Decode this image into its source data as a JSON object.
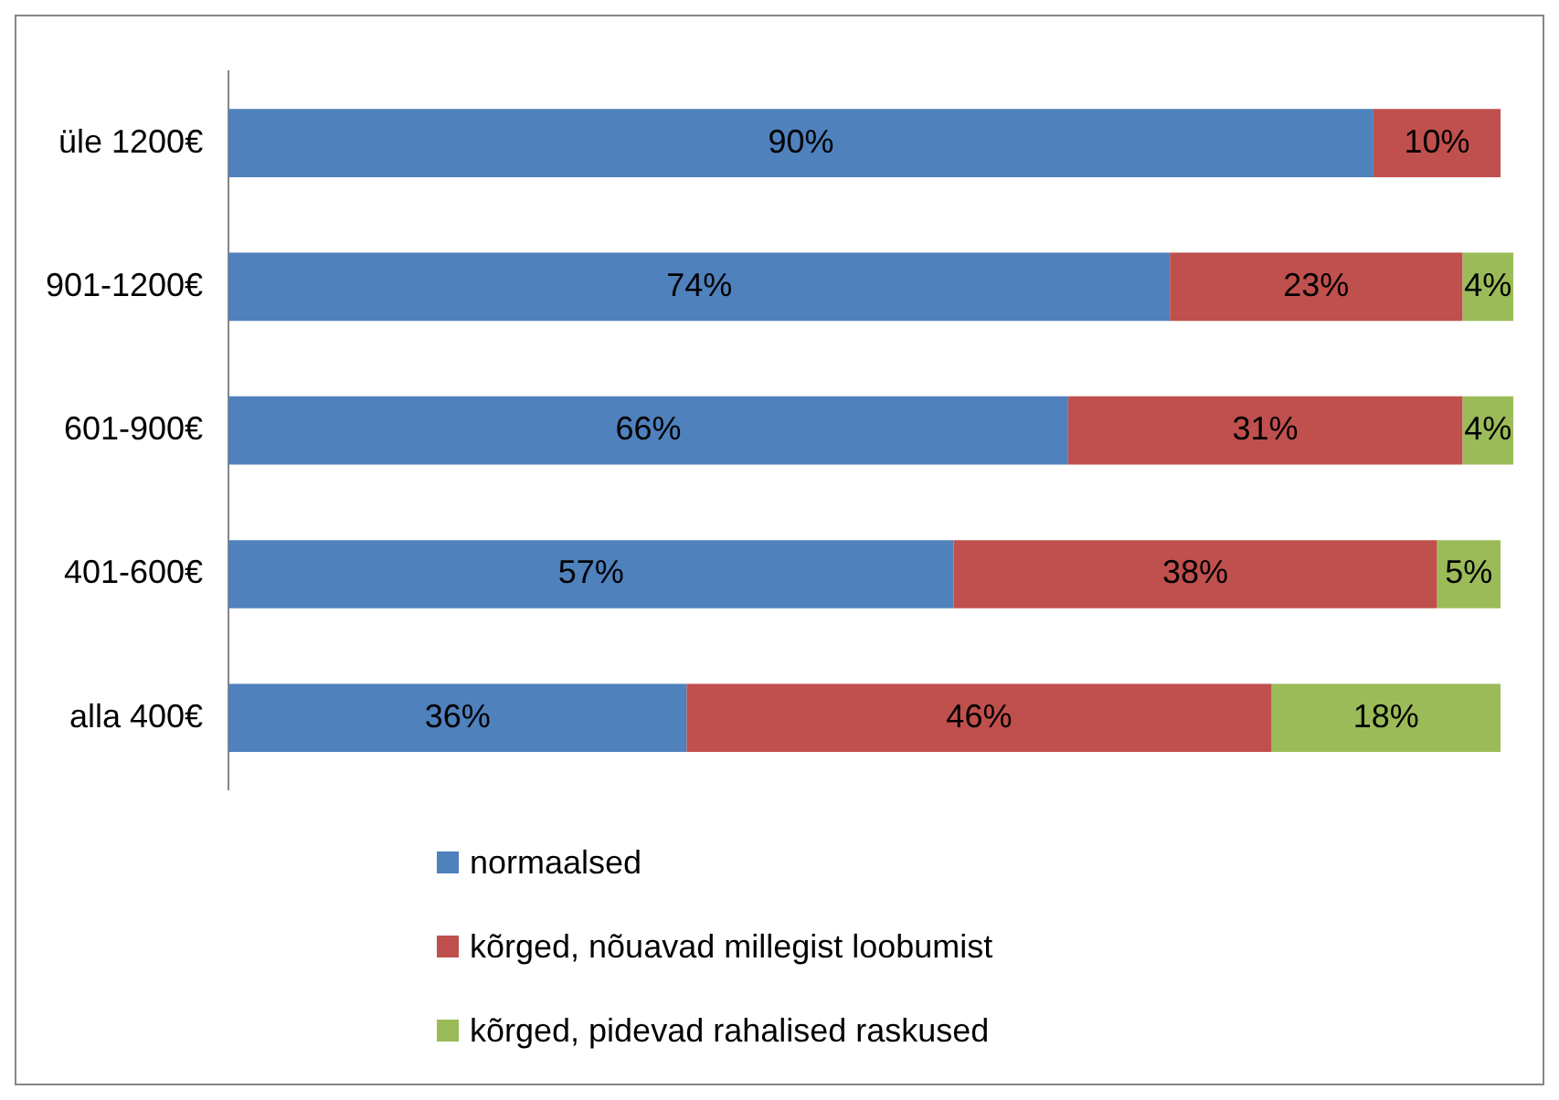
{
  "chart_data": {
    "type": "bar",
    "orientation": "horizontal",
    "stacked": true,
    "categories": [
      "üle 1200€",
      "901-1200€",
      "601-900€",
      "401-600€",
      "alla 400€"
    ],
    "legend": "bottom",
    "grid": false,
    "tick_labels": "y",
    "series": [
      {
        "name": "normaalsed",
        "color": "#4f81bd",
        "values": [
          90,
          74,
          66,
          57,
          36
        ],
        "value_labels": [
          "90%",
          "74%",
          "66%",
          "57%",
          "36%"
        ]
      },
      {
        "name": "kõrged, nõuavad millegist loobumist",
        "color": "#c0504d",
        "values": [
          10,
          23,
          31,
          38,
          46
        ],
        "value_labels": [
          "10%",
          "23%",
          "31%",
          "38%",
          "46%"
        ]
      },
      {
        "name": "kõrged, pidevad rahalised raskused",
        "color": "#9bbb59",
        "values": [
          null,
          4,
          4,
          5,
          18
        ],
        "value_labels": [
          null,
          "4%",
          "4%",
          "5%",
          "18%"
        ]
      }
    ]
  }
}
